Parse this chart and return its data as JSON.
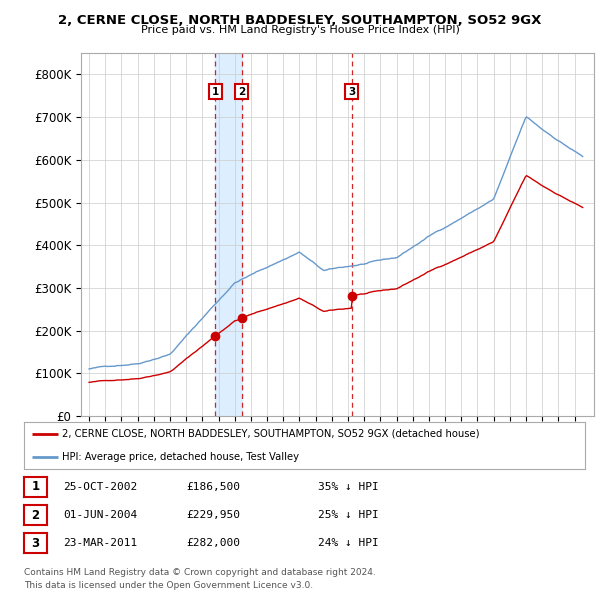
{
  "title": "2, CERNE CLOSE, NORTH BADDESLEY, SOUTHAMPTON, SO52 9GX",
  "subtitle": "Price paid vs. HM Land Registry's House Price Index (HPI)",
  "legend_line1": "2, CERNE CLOSE, NORTH BADDESLEY, SOUTHAMPTON, SO52 9GX (detached house)",
  "legend_line2": "HPI: Average price, detached house, Test Valley",
  "footer1": "Contains HM Land Registry data © Crown copyright and database right 2024.",
  "footer2": "This data is licensed under the Open Government Licence v3.0.",
  "transactions": [
    {
      "label": "1",
      "date": "25-OCT-2002",
      "price": 186500,
      "pct": "35%",
      "dir": "↓",
      "x": 2002.81
    },
    {
      "label": "2",
      "date": "01-JUN-2004",
      "price": 229950,
      "pct": "25%",
      "dir": "↓",
      "x": 2004.42
    },
    {
      "label": "3",
      "date": "23-MAR-2011",
      "price": 282000,
      "pct": "24%",
      "dir": "↓",
      "x": 2011.22
    }
  ],
  "hpi_color": "#6699cc",
  "price_color": "#cc0000",
  "marker_box_color": "#cc0000",
  "shade_color": "#ddeeff",
  "ylim": [
    0,
    850000
  ],
  "yticks": [
    0,
    100000,
    200000,
    300000,
    400000,
    500000,
    600000,
    700000,
    800000
  ],
  "ytick_labels": [
    "£0",
    "£100K",
    "£200K",
    "£300K",
    "£400K",
    "£500K",
    "£600K",
    "£700K",
    "£800K"
  ],
  "background_color": "#ffffff",
  "grid_color": "#cccccc",
  "xstart": 1995,
  "xend": 2025
}
